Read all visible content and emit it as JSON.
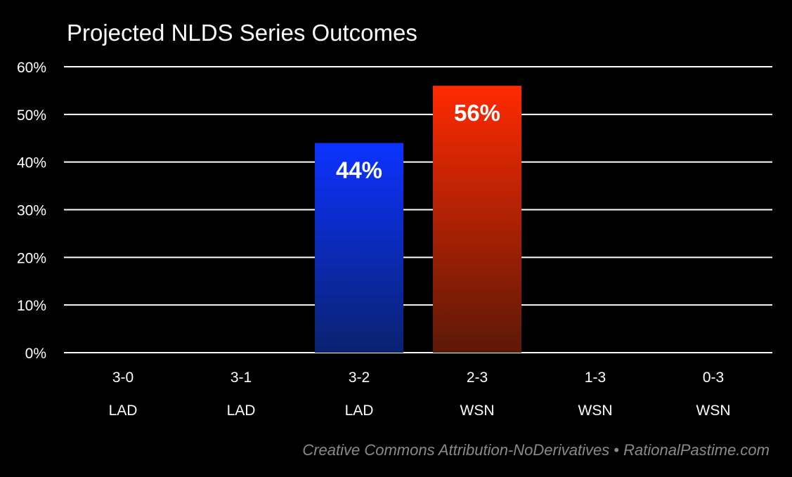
{
  "chart_data": {
    "type": "bar",
    "title": "Projected NLDS Series Outcomes",
    "categories": [
      "3-0",
      "3-1",
      "3-2",
      "2-3",
      "1-3",
      "0-3"
    ],
    "teams": [
      "LAD",
      "LAD",
      "LAD",
      "WSN",
      "WSN",
      "WSN"
    ],
    "values": [
      0,
      0,
      44,
      56,
      0,
      0
    ],
    "data_labels": [
      "",
      "",
      "44%",
      "56%",
      "",
      ""
    ],
    "ylim": [
      0,
      60
    ],
    "yticks": [
      0,
      10,
      20,
      30,
      40,
      50,
      60
    ],
    "ytick_labels": [
      "0%",
      "10%",
      "20%",
      "30%",
      "40%",
      "50%",
      "60%"
    ],
    "grid": true,
    "xlabel": "",
    "ylabel": "",
    "bar_colors": {
      "LAD": {
        "top": "#0c32ff",
        "bottom": "#0a2270"
      },
      "WSN": {
        "top": "#ff2a00",
        "bottom": "#5c1808"
      }
    },
    "background": "#000000",
    "text_color": "#ffffff",
    "credit_color": "#8a8a8a"
  },
  "footer": {
    "credit": "Creative Commons Attribution-NoDerivatives • RationalPastime.com"
  }
}
